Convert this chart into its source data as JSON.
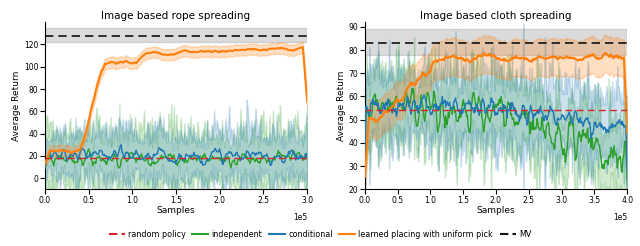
{
  "title_left": "Image based rope spreading",
  "title_right": "Image based cloth spreading",
  "xlabel": "Samples",
  "ylabel": "Average Return",
  "colors": {
    "random": "#d62728",
    "independent": "#2ca02c",
    "conditional": "#1f77b4",
    "learned": "#ff7f0e",
    "mv": "#111111"
  },
  "rope": {
    "xlim": [
      0,
      300000.0
    ],
    "ylim": [
      -10,
      140
    ],
    "mv_line": 128,
    "mv_band_lo": 122,
    "mv_band_hi": 135,
    "random_line": 18,
    "yticks": [
      0,
      20,
      40,
      60,
      80,
      100,
      120
    ]
  },
  "cloth": {
    "xlim": [
      0,
      400000.0
    ],
    "ylim": [
      20,
      92
    ],
    "mv_line": 83,
    "mv_band_lo": 78,
    "mv_band_hi": 89,
    "random_line": 54,
    "yticks": [
      20,
      30,
      40,
      50,
      60,
      70,
      80,
      90
    ]
  },
  "legend": [
    {
      "label": "random policy",
      "color": "#d62728",
      "linestyle": "dashed",
      "lw": 1.5
    },
    {
      "label": "independent",
      "color": "#2ca02c",
      "linestyle": "solid",
      "lw": 1.5
    },
    {
      "label": "conditional",
      "color": "#1f77b4",
      "linestyle": "solid",
      "lw": 1.5
    },
    {
      "label": "learned placing with uniform pick",
      "color": "#ff7f0e",
      "linestyle": "solid",
      "lw": 1.5
    },
    {
      "label": "MV",
      "color": "#111111",
      "linestyle": "dashed",
      "lw": 1.5
    }
  ]
}
